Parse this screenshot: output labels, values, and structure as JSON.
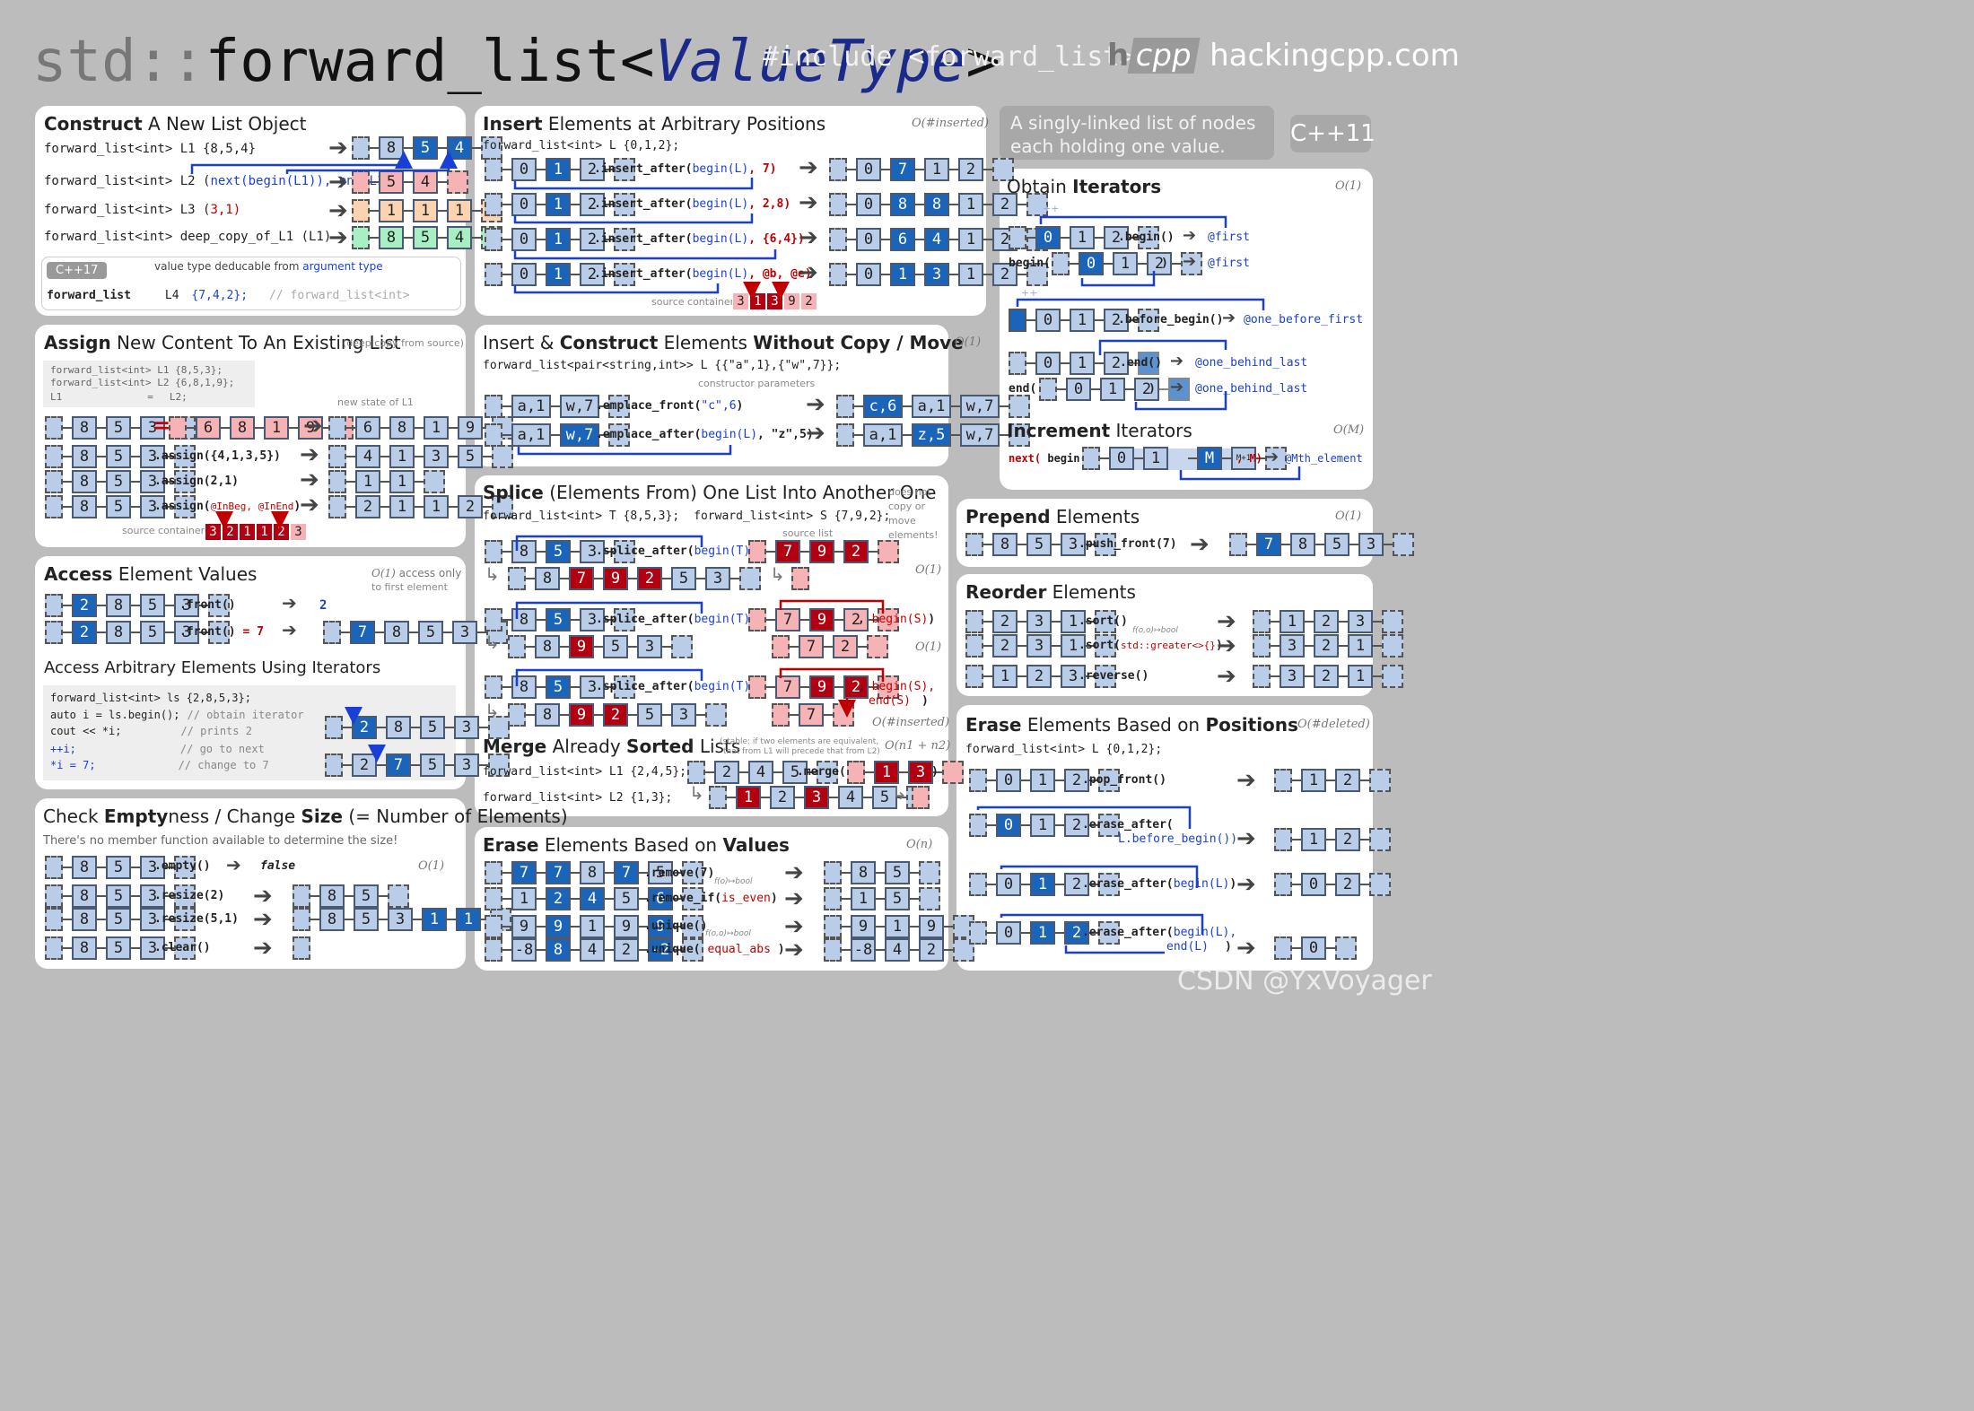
{
  "header": {
    "title_prefix": "std::",
    "title_main": "forward_list",
    "title_lt": "<",
    "title_param": "ValueType",
    "title_gt": ">",
    "include": "#include <forward_list>",
    "logo_h": "h",
    "logo_cpp": "cpp",
    "site": "hackingcpp.com"
  },
  "intro": {
    "desc_line1": "A singly-linked list of nodes",
    "desc_line2": "each holding one value.",
    "badge": "C++11"
  },
  "construct": {
    "title_b": "Construct",
    "title_r": " A New List Object",
    "l1": "forward_list<int> L1 {8,5,4}",
    "l2a": "forward_list<int> L2 (",
    "l2b": "next(begin(L1)), end(L1)",
    "l2c": ")",
    "l3a": "forward_list<int> L3 (",
    "l3b": "3,1",
    "l3c": ")",
    "l4": "forward_list<int> deep_copy_of_L1 (L1)",
    "cpp17": "C++17",
    "deduce": "value type deducable from",
    "deduce_b": "argument type",
    "l5a": "forward_list",
    "l5b": "L4",
    "l5c": "{7,4,2};",
    "l5d": "// forward_list<int>"
  },
  "assign": {
    "title_b": "Assign",
    "title_r": " New Content To An Existing List",
    "note": "(deep copy from source)",
    "code1": "forward_list<int> L1 {8,5,3};",
    "code2": "forward_list<int> L2 {6,8,1,9};",
    "code3a": "L1",
    "code3b": "=",
    "code3c": "L2;",
    "newstate": "new state of L1",
    "eq": "=",
    "a1": ".assign({4,1,3,5})",
    "a2": ".assign(2,1)",
    "a3a": ".assign(",
    "a3b": "@InBeg, @InEnd",
    "a3c": ")",
    "srclabel": "source container"
  },
  "access": {
    "title_b": "Access",
    "title_r": " Element Values",
    "complex": "O(1)",
    "complex_note1": "access only",
    "complex_note2": "to first element",
    "f1": ".front()",
    "f1r": "2",
    "f2a": ".front()",
    "f2b": "= 7",
    "sub": "Access Arbitrary Elements Using Iterators",
    "c1": "forward_list<int> ls {2,8,5,3};",
    "c2a": "auto i = ls.begin();",
    "c2b": "// obtain iterator",
    "c3a": "cout << *i;",
    "c3b": "// prints 2",
    "c4a": "++i;",
    "c4b": "// go to next",
    "c5a": "*i = 7;",
    "c5b": "// change to 7"
  },
  "empty": {
    "title_p": "Check ",
    "title_b": "Empty",
    "title_r": "ness / Change ",
    "title_b2": "Size",
    "title_r2": " (= Number of Elements)",
    "note": "There's no member function available to determine the size!",
    "complex": "O(1)",
    "e1": ".empty()",
    "e1r": "false",
    "e2": ".resize(2)",
    "e3": ".resize(5,1)",
    "e4": ".clear()"
  },
  "insert": {
    "title_b": "Insert",
    "title_r": " Elements at Arbitrary Positions",
    "complex": "O(#inserted)",
    "decl": "forward_list<int> L {0,1,2};",
    "i1a": ".insert_after(",
    "i1b": "begin(L)",
    "i1c": ", 7)",
    "i2c": ", 2,8)",
    "i3c": ", {6,4})",
    "i4c": ", @b, @e)",
    "srclabel": "source container"
  },
  "emplace": {
    "title_p": "Insert & ",
    "title_b": "Construct",
    "title_r": " Elements ",
    "title_b2": "Without Copy / Move",
    "complex": "O(1)",
    "decl": "forward_list<pair<string,int>> L {{\"a\",1},{\"w\",7}};",
    "ctor": "constructor parameters",
    "e1a": ".emplace_front(",
    "e1b": "\"c\",6",
    "e1c": ")",
    "e2a": ".emplace_after(",
    "e2b": "begin(L)",
    "e2c": ", \"z\",5)"
  },
  "splice": {
    "title_b": "Splice",
    "title_r": " (Elements From) One List Into Another One",
    "note1": "does not",
    "note2": "copy or",
    "note3": "move",
    "note4": "elements!",
    "decl1": "forward_list<int> T {8,5,3};",
    "decl2": "forward_list<int> S {7,9,2};",
    "srclabel": "source list",
    "s1a": ".splice_after(",
    "s1b": "begin(T)",
    "s1c": ",",
    "s2d": "begin(S)",
    "s2e": ")",
    "s3d": "begin(S),",
    "s3e": "end(S)",
    "s3f": ")",
    "c1": "O(1)",
    "c2": "O(1)",
    "c3": "O(#inserted)"
  },
  "merge": {
    "title_b": "Merge",
    "title_r": " Already ",
    "title_b2": "Sorted",
    "title_r2": " Lists",
    "note1": "(stable: if two elements are equivalent,",
    "note2": "that from L1 will precede that from L2)",
    "complex": "O(n1 + n2)",
    "d1": "forward_list<int> L1 {2,4,5};",
    "d2": "forward_list<int> L2 {1,3};",
    "m": ".merge("
  },
  "erasev": {
    "title_b": "Erase",
    "title_r": " Elements Based on ",
    "title_b2": "Values",
    "complex": "O(n)",
    "r1": ".remove(7)",
    "r2a": ".remove_if(",
    "r2b": "is_even",
    "r2c": ")",
    "u1": ".unique()",
    "u2a": ".unique(",
    "u2b": "equal_abs",
    "u2c": ")",
    "fbool": "f(o)↦bool",
    "fbool2": "f(o,o)↦bool"
  },
  "iter": {
    "title_r": "Obtain ",
    "title_b": "Iterators",
    "complex": "O(1)",
    "b1": ".begin()",
    "b1r": "@first",
    "b2a": "begin(",
    "b2b": ")",
    "b2r": "@first",
    "bb": ".before_begin()",
    "bbr": "@one_before_first",
    "e1": ".end()",
    "e1r": "@one_behind_last",
    "e2a": "end(",
    "e2b": ")",
    "e2r": "@one_behind_last",
    "inc_b": "Increment",
    "inc_r": " Iterators",
    "inc_c": "O(M)",
    "n1": "next(",
    "n2": "begin(",
    "n3": ", M)",
    "n4": "@Mth_element",
    "pp": "++"
  },
  "prepend": {
    "title_b": "Prepend",
    "title_r": " Elements",
    "complex": "O(1)",
    "p1": ".push_front(7)"
  },
  "reorder": {
    "title_b": "Reorder",
    "title_r": " Elements",
    "s1": ".sort()",
    "s2a": ".sort(",
    "s2b": "std::greater<>{}",
    "s2c": ")",
    "r1": ".reverse()"
  },
  "erasep": {
    "title_b": "Erase",
    "title_r": " Elements Based on ",
    "title_b2": "Positions",
    "complex": "O(#deleted)",
    "decl": "forward_list<int> L {0,1,2};",
    "p1": ".pop_front()",
    "e1a": ".erase_after(",
    "e1b": "L.before_begin())",
    "e2a": ".erase_after(",
    "e2b": "begin(L)",
    "e2c": ")",
    "e3a": ".erase_after(",
    "e3b": "begin(L),",
    "e3c": "end(L)",
    "e3d": ")"
  },
  "watermark": "CSDN @YxVoyager",
  "colors": {
    "node": "#b9cde8",
    "highlight": "#1a64ba",
    "red": "#b30010",
    "pink": "#f6b3b6",
    "orange": "#fcd3b0",
    "green": "#a8f0c4",
    "bg": "#bcbcbc"
  }
}
